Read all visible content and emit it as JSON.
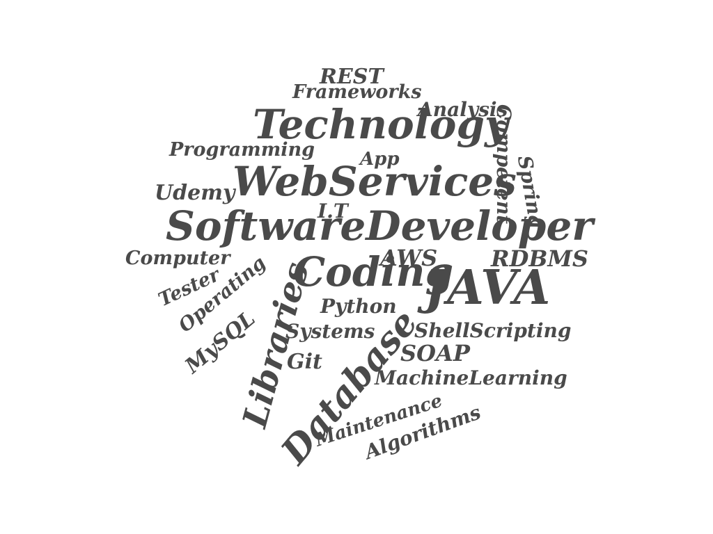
{
  "word_cloud": {
    "text_color": "#4a4a4a",
    "background_color": "#ffffff",
    "words": {
      "rest": "REST",
      "frameworks": "Frameworks",
      "analysis": "Analysis",
      "technology": "Technology",
      "competent": "Competent",
      "programming": "Programming",
      "app": "App",
      "spring": "Spring",
      "webservices": "WebServices",
      "udemy": "Udemy",
      "it": "I.T",
      "software_developer": "SoftwareDeveloper",
      "rdbms": "RDBMS",
      "computer": "Computer",
      "aws": "AWS",
      "coding": "Coding",
      "java": "JAVA",
      "tester": "Tester",
      "operating": "Operating",
      "libraries": "Libraries",
      "python": "Python",
      "systems": "Systems",
      "shell_scripting": "ShellScripting",
      "mysql": "MySQL",
      "soap": "SOAP",
      "git": "Git",
      "database": "Database",
      "machine_learning": "MachineLearning",
      "maintenance": "Maintenance",
      "algorithms": "Algorithms"
    }
  }
}
